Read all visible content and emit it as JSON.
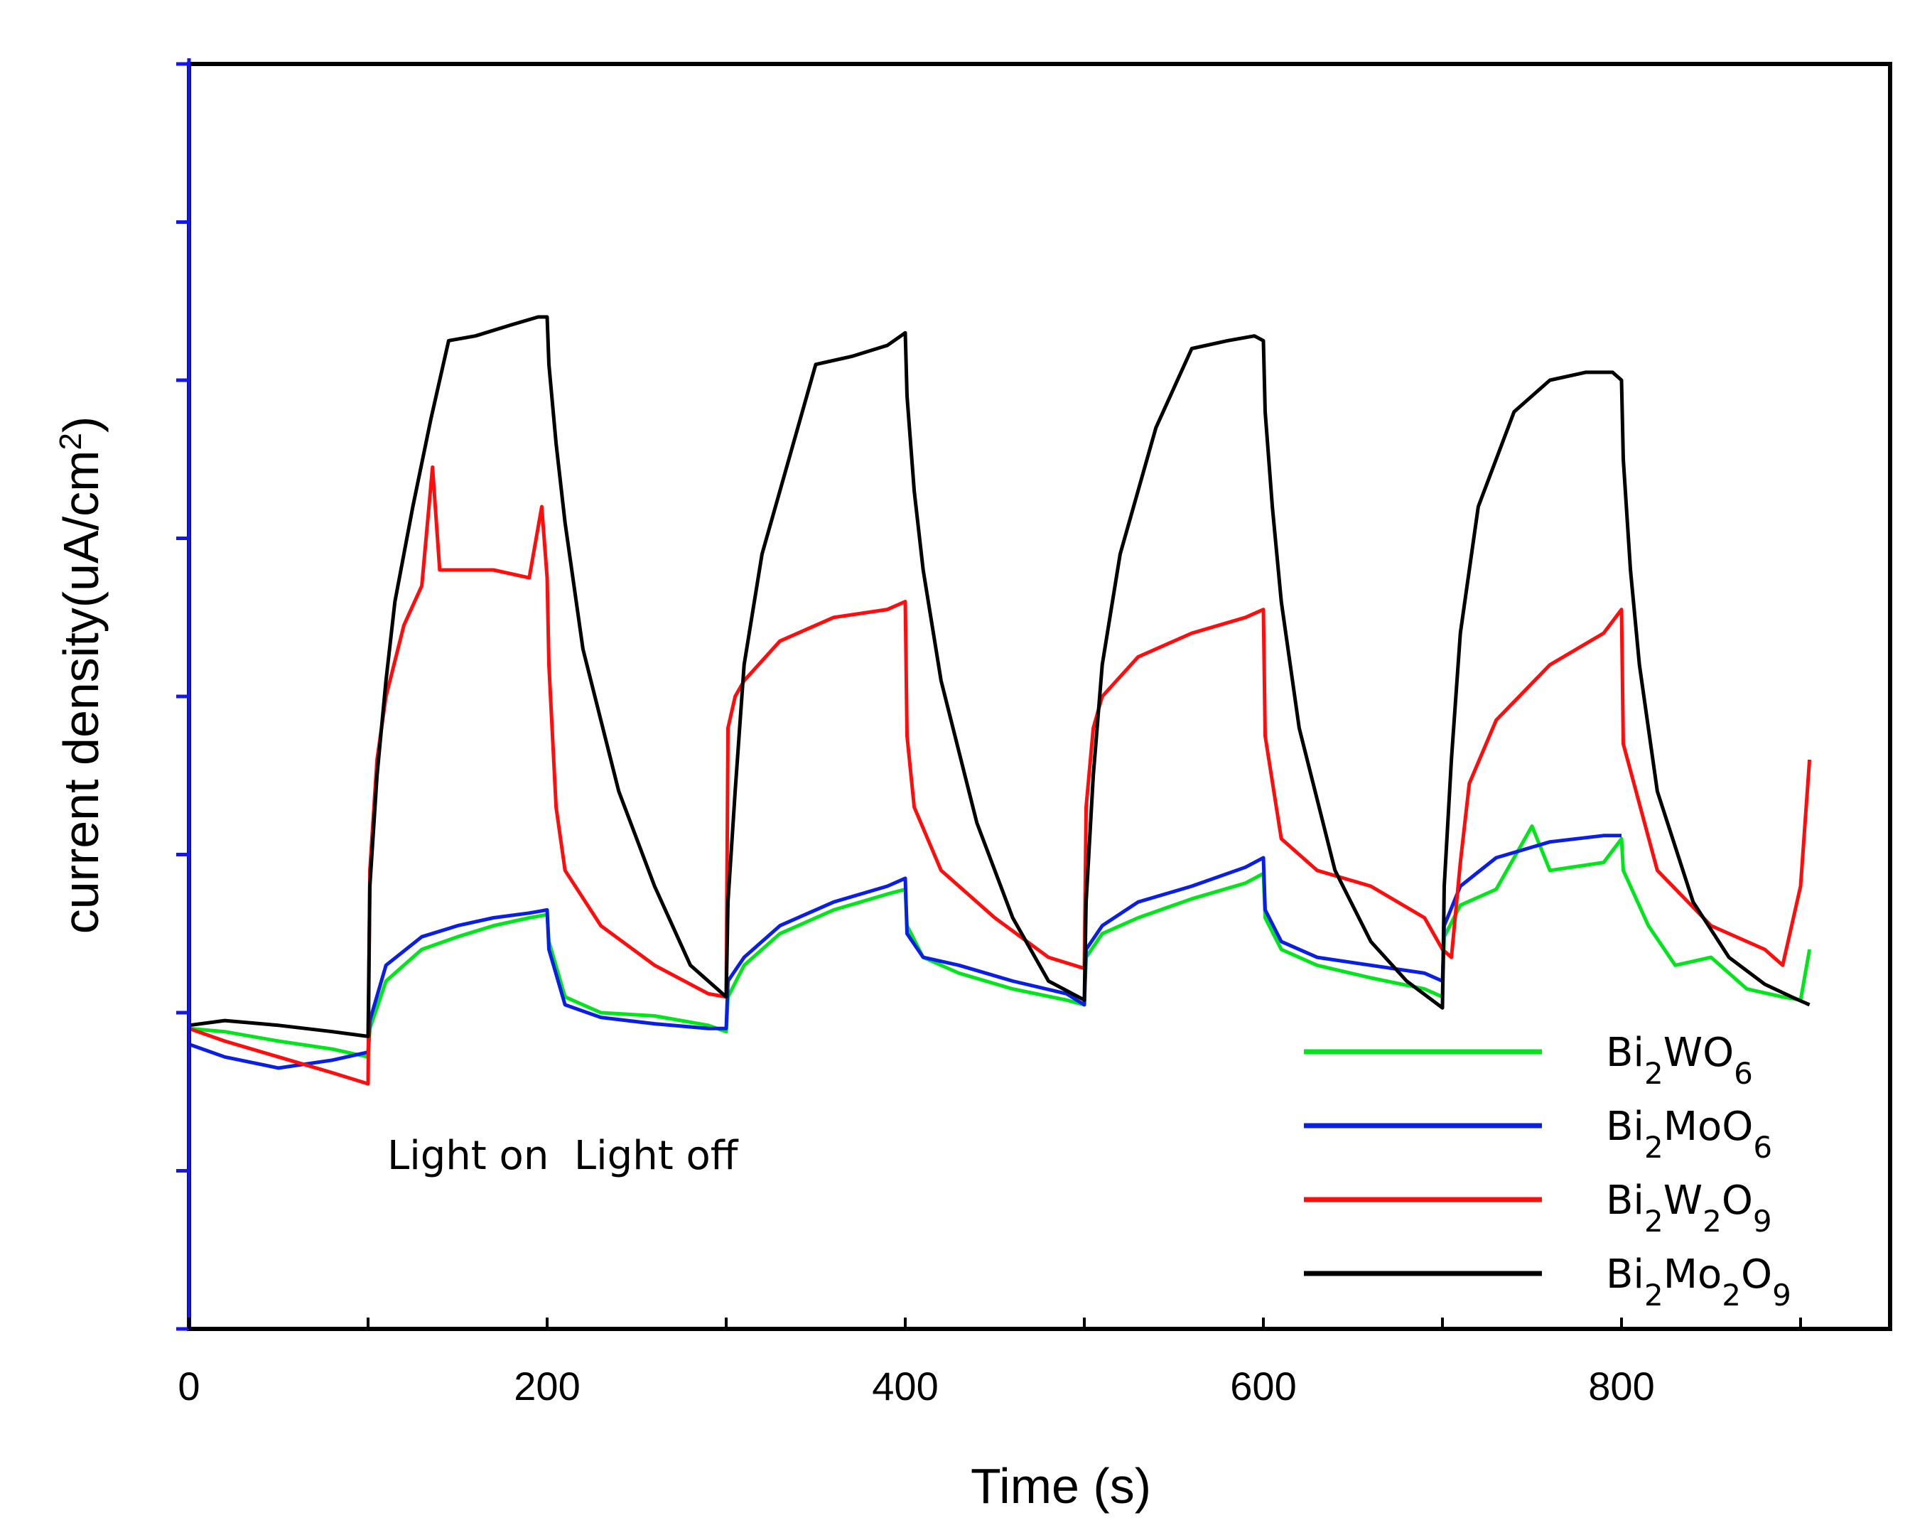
{
  "chart_data": {
    "type": "line",
    "xlabel": "Time (s)",
    "ylabel": "current density(uA/cm2)",
    "ylabel_parts": {
      "main": "current density(uA/cm",
      "sup": "2",
      "close": ")"
    },
    "xlim": [
      0,
      950
    ],
    "ylim": [
      -2,
      6
    ],
    "xticks": [
      {
        "value": 0,
        "label": "0"
      },
      {
        "value": 200,
        "label": "200"
      },
      {
        "value": 400,
        "label": "400"
      },
      {
        "value": 600,
        "label": "600"
      },
      {
        "value": 800,
        "label": "800"
      }
    ],
    "yticks": [
      -2,
      -1,
      0,
      1,
      2,
      3,
      4,
      5,
      6
    ],
    "ytick_labels_shown": false,
    "annotation": "Light on  Light off",
    "legend_position": "bottom-right",
    "series": [
      {
        "name": "Bi2WO6",
        "legend": {
          "base": "Bi",
          "parts": [
            [
              "2",
              "sub"
            ],
            [
              "WO",
              ""
            ],
            [
              "6",
              "sub"
            ]
          ]
        },
        "color": "#00e61a",
        "x": [
          0,
          20,
          50,
          80,
          100,
          101,
          110,
          130,
          150,
          170,
          190,
          200,
          201,
          210,
          230,
          260,
          290,
          300,
          301,
          310,
          330,
          360,
          390,
          400,
          401,
          410,
          430,
          460,
          490,
          500,
          501,
          510,
          530,
          560,
          590,
          600,
          601,
          610,
          630,
          660,
          690,
          700,
          701,
          710,
          730,
          750,
          760,
          790,
          800,
          801,
          815,
          830,
          850,
          870,
          890,
          900,
          905
        ],
        "y": [
          -0.1,
          -0.12,
          -0.18,
          -0.23,
          -0.28,
          -0.1,
          0.2,
          0.4,
          0.48,
          0.55,
          0.6,
          0.62,
          0.45,
          0.1,
          0.0,
          -0.02,
          -0.08,
          -0.12,
          0.1,
          0.3,
          0.5,
          0.65,
          0.75,
          0.78,
          0.55,
          0.35,
          0.25,
          0.15,
          0.08,
          0.05,
          0.35,
          0.5,
          0.6,
          0.72,
          0.82,
          0.88,
          0.6,
          0.4,
          0.3,
          0.22,
          0.15,
          0.1,
          0.48,
          0.68,
          0.78,
          1.18,
          0.9,
          0.95,
          1.1,
          0.9,
          0.55,
          0.3,
          0.35,
          0.15,
          0.1,
          0.08,
          0.4
        ]
      },
      {
        "name": "Bi2MoO6",
        "legend": {
          "base": "Bi",
          "parts": [
            [
              "2",
              "sub"
            ],
            [
              "MoO",
              ""
            ],
            [
              "6",
              "sub"
            ]
          ]
        },
        "color": "#0a1ee6",
        "x": [
          0,
          20,
          50,
          80,
          100,
          101,
          110,
          130,
          150,
          170,
          190,
          200,
          201,
          210,
          230,
          260,
          290,
          300,
          301,
          310,
          330,
          360,
          390,
          400,
          401,
          410,
          430,
          460,
          490,
          500,
          501,
          510,
          530,
          560,
          590,
          600,
          601,
          610,
          630,
          660,
          690,
          700,
          701,
          710,
          730,
          760,
          790,
          800
        ],
        "y": [
          -0.2,
          -0.28,
          -0.35,
          -0.3,
          -0.25,
          -0.05,
          0.3,
          0.48,
          0.55,
          0.6,
          0.63,
          0.65,
          0.4,
          0.05,
          -0.03,
          -0.07,
          -0.1,
          -0.1,
          0.2,
          0.35,
          0.55,
          0.7,
          0.8,
          0.85,
          0.5,
          0.35,
          0.3,
          0.2,
          0.12,
          0.05,
          0.4,
          0.55,
          0.7,
          0.8,
          0.92,
          0.98,
          0.65,
          0.45,
          0.35,
          0.3,
          0.25,
          0.2,
          0.55,
          0.8,
          0.98,
          1.08,
          1.12,
          1.12
        ]
      },
      {
        "name": "Bi2W2O9",
        "legend": {
          "base": "Bi",
          "parts": [
            [
              "2",
              "sub"
            ],
            [
              "W",
              ""
            ],
            [
              "2",
              "sub"
            ],
            [
              "O",
              ""
            ],
            [
              "9",
              "sub"
            ]
          ]
        },
        "color": "#ff0d0d",
        "x": [
          0,
          20,
          50,
          80,
          100,
          101,
          105,
          110,
          120,
          130,
          136,
          140,
          150,
          170,
          190,
          197,
          200,
          201,
          205,
          210,
          230,
          260,
          290,
          300,
          301,
          305,
          310,
          330,
          360,
          390,
          400,
          401,
          405,
          420,
          450,
          480,
          500,
          501,
          505,
          510,
          530,
          560,
          590,
          600,
          601,
          610,
          630,
          660,
          690,
          700,
          705,
          710,
          715,
          730,
          760,
          790,
          800,
          801,
          820,
          850,
          880,
          890,
          900,
          905
        ],
        "y": [
          -0.1,
          -0.18,
          -0.28,
          -0.38,
          -0.45,
          0.9,
          1.6,
          2.0,
          2.45,
          2.7,
          3.45,
          2.8,
          2.8,
          2.8,
          2.75,
          3.2,
          2.75,
          2.2,
          1.3,
          0.9,
          0.55,
          0.3,
          0.12,
          0.1,
          1.8,
          2.0,
          2.1,
          2.35,
          2.5,
          2.55,
          2.6,
          1.75,
          1.3,
          0.9,
          0.6,
          0.35,
          0.28,
          1.3,
          1.8,
          2.0,
          2.25,
          2.4,
          2.5,
          2.55,
          1.75,
          1.1,
          0.9,
          0.8,
          0.6,
          0.4,
          0.35,
          0.95,
          1.45,
          1.85,
          2.2,
          2.4,
          2.55,
          1.7,
          0.9,
          0.55,
          0.4,
          0.3,
          0.8,
          1.6
        ]
      },
      {
        "name": "Bi2Mo2O9",
        "legend": {
          "base": "Bi",
          "parts": [
            [
              "2",
              "sub"
            ],
            [
              "Mo",
              ""
            ],
            [
              "2",
              "sub"
            ],
            [
              "O",
              ""
            ],
            [
              "9",
              "sub"
            ]
          ]
        },
        "color": "#000000",
        "x": [
          0,
          20,
          50,
          80,
          100,
          101,
          105,
          110,
          115,
          125,
          135,
          145,
          160,
          180,
          195,
          200,
          201,
          205,
          210,
          220,
          240,
          260,
          280,
          300,
          301,
          305,
          310,
          320,
          335,
          350,
          370,
          390,
          400,
          401,
          405,
          410,
          420,
          440,
          460,
          480,
          500,
          501,
          505,
          510,
          520,
          540,
          560,
          580,
          595,
          600,
          601,
          605,
          610,
          620,
          640,
          660,
          680,
          700,
          701,
          705,
          710,
          720,
          740,
          760,
          780,
          795,
          800,
          801,
          805,
          810,
          820,
          840,
          860,
          880,
          895,
          905
        ],
        "y": [
          -0.08,
          -0.05,
          -0.08,
          -0.12,
          -0.15,
          0.8,
          1.5,
          2.1,
          2.6,
          3.2,
          3.75,
          4.25,
          4.28,
          4.35,
          4.4,
          4.4,
          4.1,
          3.6,
          3.1,
          2.3,
          1.4,
          0.8,
          0.3,
          0.1,
          0.7,
          1.4,
          2.2,
          2.9,
          3.5,
          4.1,
          4.15,
          4.22,
          4.3,
          3.9,
          3.3,
          2.8,
          2.1,
          1.2,
          0.6,
          0.2,
          0.08,
          0.7,
          1.5,
          2.2,
          2.9,
          3.7,
          4.2,
          4.25,
          4.28,
          4.25,
          3.8,
          3.2,
          2.6,
          1.8,
          0.9,
          0.45,
          0.2,
          0.03,
          0.8,
          1.6,
          2.4,
          3.2,
          3.8,
          4.0,
          4.05,
          4.05,
          4.0,
          3.5,
          2.8,
          2.2,
          1.4,
          0.7,
          0.35,
          0.18,
          0.1,
          0.05
        ]
      }
    ]
  }
}
